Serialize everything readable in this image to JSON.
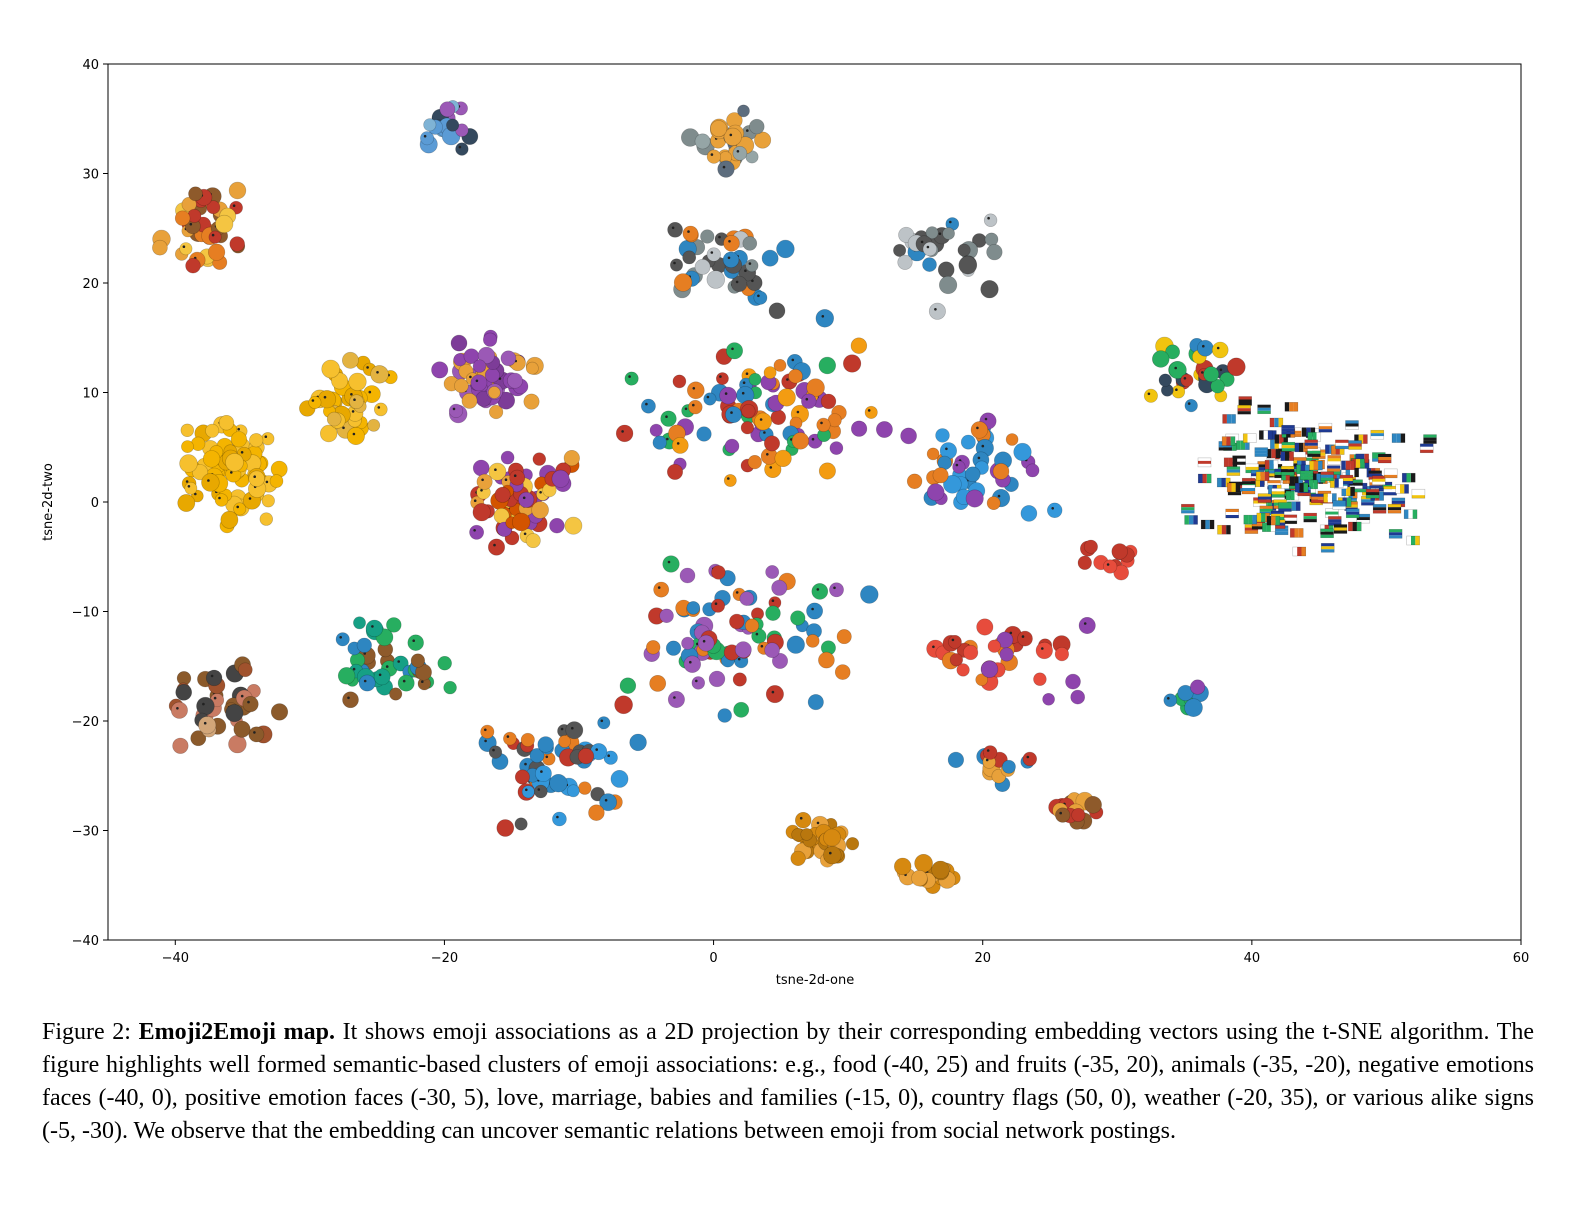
{
  "chart_data": {
    "type": "scatter",
    "xlabel": "tsne-2d-one",
    "ylabel": "tsne-2d-two",
    "xlim": [
      -45,
      60
    ],
    "ylim": [
      -40,
      40
    ],
    "xticks": [
      -40,
      -20,
      0,
      20,
      40,
      60
    ],
    "yticks": [
      -40,
      -30,
      -20,
      -10,
      0,
      10,
      20,
      30,
      40
    ],
    "xtick_labels": [
      "−40",
      "−20",
      "0",
      "20",
      "40",
      "60"
    ],
    "ytick_labels": [
      "−40",
      "−30",
      "−20",
      "−10",
      "0",
      "10",
      "20",
      "30",
      "40"
    ],
    "grid": false,
    "clusters": [
      {
        "cx": -38,
        "cy": 25,
        "rx": 4,
        "ry": 5,
        "n": 45,
        "colors": [
          "#e8a13a",
          "#c0392b",
          "#f4c542",
          "#8e5a2b",
          "#e67e22"
        ]
      },
      {
        "cx": -36,
        "cy": 3,
        "rx": 5,
        "ry": 6,
        "n": 75,
        "colors": [
          "#f6c02e",
          "#f4b400",
          "#e8a800"
        ]
      },
      {
        "cx": -27,
        "cy": 9,
        "rx": 4,
        "ry": 6,
        "n": 40,
        "colors": [
          "#f6c02e",
          "#f4b400",
          "#e8a800",
          "#e3b341"
        ]
      },
      {
        "cx": -36,
        "cy": -19,
        "rx": 6,
        "ry": 5,
        "n": 40,
        "colors": [
          "#8b5a2b",
          "#444444",
          "#c97b63",
          "#a0522d",
          "#d2a679"
        ]
      },
      {
        "cx": -20,
        "cy": 34,
        "rx": 3,
        "ry": 3,
        "n": 20,
        "colors": [
          "#5b9bd5",
          "#9b59b6",
          "#7fb3d5",
          "#34495e"
        ]
      },
      {
        "cx": -17,
        "cy": 11,
        "rx": 5,
        "ry": 4,
        "n": 55,
        "colors": [
          "#8e44ad",
          "#9b59b6",
          "#e8a13a",
          "#7d3c98"
        ]
      },
      {
        "cx": -14,
        "cy": 0,
        "rx": 6,
        "ry": 5,
        "n": 65,
        "colors": [
          "#e8a13a",
          "#c0392b",
          "#f4c542",
          "#8e44ad",
          "#d35400"
        ]
      },
      {
        "cx": -24,
        "cy": -15,
        "rx": 5,
        "ry": 5,
        "n": 40,
        "colors": [
          "#27ae60",
          "#2e86c1",
          "#8e5a2b",
          "#16a085"
        ]
      },
      {
        "cx": -12,
        "cy": -24,
        "rx": 8,
        "ry": 7,
        "n": 55,
        "colors": [
          "#2e86c1",
          "#e67e22",
          "#c0392b",
          "#3498db",
          "#555555"
        ]
      },
      {
        "cx": 1,
        "cy": 33,
        "rx": 4,
        "ry": 3,
        "n": 30,
        "colors": [
          "#7f8c8d",
          "#e8a13a",
          "#95a5a6",
          "#5d6d7e"
        ]
      },
      {
        "cx": 1,
        "cy": 22,
        "rx": 7,
        "ry": 5,
        "n": 40,
        "colors": [
          "#7f8c8d",
          "#bdc3c7",
          "#2e86c1",
          "#e67e22",
          "#555555"
        ]
      },
      {
        "cx": 4,
        "cy": 8,
        "rx": 12,
        "ry": 9,
        "n": 95,
        "colors": [
          "#2e86c1",
          "#e67e22",
          "#c0392b",
          "#f39c12",
          "#8e44ad",
          "#27ae60"
        ]
      },
      {
        "cx": 2,
        "cy": -12,
        "rx": 11,
        "ry": 9,
        "n": 85,
        "colors": [
          "#2e86c1",
          "#e67e22",
          "#c0392b",
          "#9b59b6",
          "#27ae60"
        ]
      },
      {
        "cx": 20,
        "cy": 2,
        "rx": 6,
        "ry": 7,
        "n": 45,
        "colors": [
          "#3498db",
          "#8e44ad",
          "#e67e22",
          "#2e86c1"
        ]
      },
      {
        "cx": 17,
        "cy": 23,
        "rx": 6,
        "ry": 5,
        "n": 30,
        "colors": [
          "#7f8c8d",
          "#bdc3c7",
          "#2e86c1",
          "#555555"
        ]
      },
      {
        "cx": 22,
        "cy": -14,
        "rx": 7,
        "ry": 5,
        "n": 35,
        "colors": [
          "#c0392b",
          "#e74c3c",
          "#8e44ad",
          "#e67e22"
        ]
      },
      {
        "cx": 8,
        "cy": -31,
        "rx": 3,
        "ry": 3,
        "n": 35,
        "colors": [
          "#d68910",
          "#e8a13a",
          "#b9770e"
        ]
      },
      {
        "cx": 16,
        "cy": -34,
        "rx": 3,
        "ry": 1.5,
        "n": 20,
        "colors": [
          "#d68910",
          "#e8a13a",
          "#b9770e"
        ]
      },
      {
        "cx": 21,
        "cy": -24,
        "rx": 4,
        "ry": 2,
        "n": 14,
        "colors": [
          "#e8a13a",
          "#2e86c1",
          "#c0392b"
        ]
      },
      {
        "cx": 27,
        "cy": -28,
        "rx": 3,
        "ry": 2,
        "n": 16,
        "colors": [
          "#e8a13a",
          "#c0392b",
          "#8e5a2b"
        ]
      },
      {
        "cx": 35,
        "cy": -18,
        "rx": 2,
        "ry": 3,
        "n": 8,
        "colors": [
          "#2e86c1",
          "#27ae60",
          "#8e44ad"
        ]
      },
      {
        "cx": 29,
        "cy": -5,
        "rx": 3,
        "ry": 2,
        "n": 12,
        "colors": [
          "#c0392b",
          "#e74c3c"
        ]
      },
      {
        "cx": 36,
        "cy": 12,
        "rx": 4,
        "ry": 4,
        "n": 30,
        "colors": [
          "#27ae60",
          "#c0392b",
          "#f1c40f",
          "#2e86c1",
          "#34495e"
        ]
      }
    ],
    "flag_cluster": {
      "cx": 44,
      "cy": 2,
      "rx": 10,
      "ry": 7,
      "n": 190
    }
  },
  "caption": {
    "label": "Figure 2: ",
    "bold": "Emoji2Emoji map.",
    "text": " It shows emoji associations as a 2D projection by their corresponding embedding vectors using the t-SNE algorithm. The figure highlights well formed semantic-based clusters of emoji associations: e.g., food (-40, 25) and fruits (-35, 20), animals (-35, -20), negative emotions faces (-40, 0), positive emotion faces (-30, 5), love, marriage, babies and families (-15, 0), country flags (50, 0), weather (-20, 35), or various alike signs (-5, -30). We observe that the embedding can uncover semantic relations between emoji from social network postings."
  }
}
